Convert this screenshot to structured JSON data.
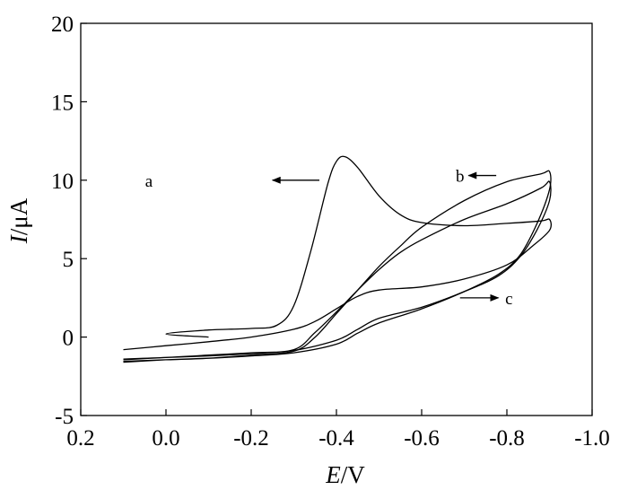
{
  "chart_data": {
    "type": "line",
    "xlabel_italic": "E",
    "xlabel_unit": "/V",
    "ylabel_italic": "I",
    "ylabel_unit": "/μA",
    "xlim": [
      0.2,
      -1.0
    ],
    "ylim": [
      -5,
      20
    ],
    "x_ticks": [
      {
        "value": 0.2,
        "label": "0.2"
      },
      {
        "value": 0.0,
        "label": "0.0"
      },
      {
        "value": -0.2,
        "label": "-0.2"
      },
      {
        "value": -0.4,
        "label": "-0.4"
      },
      {
        "value": -0.6,
        "label": "-0.6"
      },
      {
        "value": -0.8,
        "label": "-0.8"
      },
      {
        "value": -1.0,
        "label": "-1.0"
      }
    ],
    "y_ticks": [
      {
        "value": -5,
        "label": "-5"
      },
      {
        "value": 0,
        "label": "0"
      },
      {
        "value": 5,
        "label": "5"
      },
      {
        "value": 10,
        "label": "10"
      },
      {
        "value": 15,
        "label": "15"
      },
      {
        "value": 20,
        "label": "20"
      }
    ],
    "grid": false,
    "series": [
      {
        "name": "a",
        "points": [
          [
            -0.1,
            0.0
          ],
          [
            0.0,
            0.2
          ],
          [
            -0.1,
            0.45
          ],
          [
            -0.2,
            0.55
          ],
          [
            -0.26,
            0.75
          ],
          [
            -0.3,
            2.0
          ],
          [
            -0.34,
            5.5
          ],
          [
            -0.38,
            9.8
          ],
          [
            -0.4,
            11.2
          ],
          [
            -0.42,
            11.5
          ],
          [
            -0.45,
            10.8
          ],
          [
            -0.5,
            9.0
          ],
          [
            -0.55,
            7.8
          ],
          [
            -0.6,
            7.3
          ],
          [
            -0.7,
            7.1
          ],
          [
            -0.8,
            7.25
          ],
          [
            -0.88,
            7.4
          ],
          [
            -0.9,
            7.5
          ],
          [
            -0.9,
            6.8
          ],
          [
            -0.86,
            5.8
          ],
          [
            -0.8,
            4.6
          ],
          [
            -0.7,
            3.7
          ],
          [
            -0.6,
            3.2
          ],
          [
            -0.5,
            3.0
          ],
          [
            -0.45,
            2.6
          ],
          [
            -0.4,
            1.8
          ],
          [
            -0.35,
            1.0
          ],
          [
            -0.3,
            0.5
          ],
          [
            -0.2,
            0.0
          ],
          [
            -0.1,
            -0.3
          ],
          [
            0.0,
            -0.55
          ],
          [
            0.1,
            -0.8
          ]
        ]
      },
      {
        "name": "b",
        "points": [
          [
            0.1,
            -1.55
          ],
          [
            0.0,
            -1.45
          ],
          [
            -0.1,
            -1.35
          ],
          [
            -0.2,
            -1.15
          ],
          [
            -0.3,
            -0.9
          ],
          [
            -0.35,
            0.0
          ],
          [
            -0.4,
            1.5
          ],
          [
            -0.45,
            3.0
          ],
          [
            -0.5,
            4.5
          ],
          [
            -0.55,
            5.8
          ],
          [
            -0.6,
            7.0
          ],
          [
            -0.7,
            8.7
          ],
          [
            -0.8,
            9.9
          ],
          [
            -0.88,
            10.4
          ],
          [
            -0.9,
            10.55
          ],
          [
            -0.9,
            9.4
          ],
          [
            -0.87,
            7.2
          ],
          [
            -0.83,
            5.2
          ],
          [
            -0.78,
            4.0
          ],
          [
            -0.7,
            2.9
          ],
          [
            -0.6,
            1.8
          ],
          [
            -0.5,
            0.9
          ],
          [
            -0.45,
            0.25
          ],
          [
            -0.4,
            -0.45
          ],
          [
            -0.3,
            -1.0
          ],
          [
            -0.2,
            -1.2
          ],
          [
            -0.1,
            -1.35
          ],
          [
            0.0,
            -1.45
          ],
          [
            0.1,
            -1.6
          ]
        ]
      },
      {
        "name": "c",
        "points": [
          [
            0.1,
            -1.4
          ],
          [
            0.0,
            -1.3
          ],
          [
            -0.1,
            -1.15
          ],
          [
            -0.2,
            -1.0
          ],
          [
            -0.3,
            -0.8
          ],
          [
            -0.35,
            0.3
          ],
          [
            -0.4,
            1.6
          ],
          [
            -0.45,
            3.0
          ],
          [
            -0.5,
            4.3
          ],
          [
            -0.55,
            5.4
          ],
          [
            -0.6,
            6.2
          ],
          [
            -0.7,
            7.5
          ],
          [
            -0.8,
            8.5
          ],
          [
            -0.88,
            9.5
          ],
          [
            -0.9,
            9.9
          ],
          [
            -0.9,
            8.7
          ],
          [
            -0.87,
            6.8
          ],
          [
            -0.83,
            5.1
          ],
          [
            -0.78,
            3.9
          ],
          [
            -0.7,
            2.9
          ],
          [
            -0.6,
            1.9
          ],
          [
            -0.5,
            1.2
          ],
          [
            -0.45,
            0.5
          ],
          [
            -0.4,
            -0.2
          ],
          [
            -0.3,
            -0.85
          ],
          [
            -0.2,
            -1.05
          ],
          [
            -0.1,
            -1.2
          ],
          [
            0.0,
            -1.3
          ],
          [
            0.1,
            -1.45
          ]
        ]
      }
    ],
    "annotations": [
      {
        "text": "a",
        "label_x": 0.04,
        "label_y": 10.0,
        "arrow_from_x": -0.36,
        "arrow_to_x": -0.25,
        "arrow_y": 10.0,
        "direction": "left"
      },
      {
        "text": "b",
        "label_x": -0.69,
        "label_y": 10.3,
        "arrow_from_x": -0.775,
        "arrow_to_x": -0.71,
        "arrow_y": 10.3,
        "direction": "left"
      },
      {
        "text": "c",
        "label_x": -0.805,
        "label_y": 2.5,
        "arrow_from_x": -0.69,
        "arrow_to_x": -0.78,
        "arrow_y": 2.5,
        "direction": "right"
      }
    ]
  }
}
